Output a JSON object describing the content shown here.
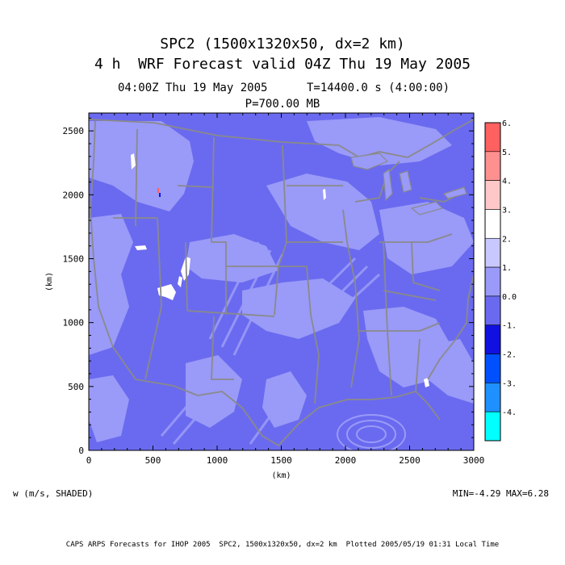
{
  "header": {
    "title": "SPC2 (1500x1320x50, dx=2 km)",
    "subtitle": "4 h  WRF Forecast valid 04Z Thu 19 May 2005",
    "time_label": "04:00Z Thu 19 May 2005",
    "t_label": "T=14400.0 s (4:00:00)",
    "level_label": "P=700.00 MB"
  },
  "chart_data": {
    "type": "heatmap",
    "xlabel": "(km)",
    "ylabel": "(km)",
    "xlim": [
      0,
      3000
    ],
    "ylim": [
      0,
      2640
    ],
    "x_ticks": [
      "0",
      "500",
      "1000",
      "1500",
      "2000",
      "2500",
      "3000"
    ],
    "y_ticks": [
      "0",
      "500",
      "1000",
      "1500",
      "2000",
      "2500"
    ],
    "variable": "w (m/s, SHADED)",
    "min_max_label": "MIN=-4.29 MAX=6.28",
    "colorbar": {
      "labels": [
        "6.",
        "5.",
        "4.",
        "3.",
        "2.",
        "1.",
        "0.0",
        "-1.",
        "-2.",
        "-3.",
        "-4."
      ],
      "bins": [
        {
          "from": 5,
          "to": 6,
          "color": "#ff6060"
        },
        {
          "from": 4,
          "to": 5,
          "color": "#ff9090"
        },
        {
          "from": 3,
          "to": 4,
          "color": "#ffc8c8"
        },
        {
          "from": 2,
          "to": 3,
          "color": "#ffffff"
        },
        {
          "from": 1,
          "to": 2,
          "color": "#c8c8ff"
        },
        {
          "from": 0,
          "to": 1,
          "color": "#9a9af8"
        },
        {
          "from": -1,
          "to": 0,
          "color": "#6a6af0"
        },
        {
          "from": -2,
          "to": -1,
          "color": "#1010e0"
        },
        {
          "from": -3,
          "to": -2,
          "color": "#0050ff"
        },
        {
          "from": -4,
          "to": -3,
          "color": "#1e90ff"
        },
        {
          "from": -5,
          "to": -4,
          "color": "#00ffff"
        }
      ]
    }
  },
  "footer": {
    "text": "CAPS ARPS Forecasts for IHOP 2005  SPC2, 1500x1320x50, dx=2 km  Plotted 2005/05/19 01:31 Local Time"
  }
}
